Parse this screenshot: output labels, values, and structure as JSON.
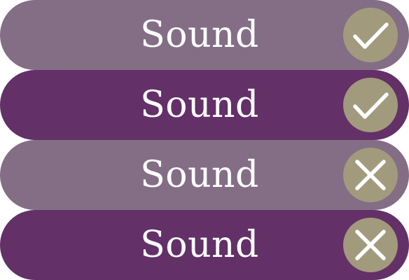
{
  "colors": {
    "light": "#836e86",
    "dark": "#633068",
    "badge": "#a29a7c",
    "glyph": "#ffffff"
  },
  "toggles": [
    {
      "label": "Sound",
      "state": "on",
      "icon": "check-icon",
      "variant": "light"
    },
    {
      "label": "Sound",
      "state": "on",
      "icon": "check-icon",
      "variant": "dark"
    },
    {
      "label": "Sound",
      "state": "off",
      "icon": "cross-icon",
      "variant": "light"
    },
    {
      "label": "Sound",
      "state": "off",
      "icon": "cross-icon",
      "variant": "dark"
    }
  ]
}
